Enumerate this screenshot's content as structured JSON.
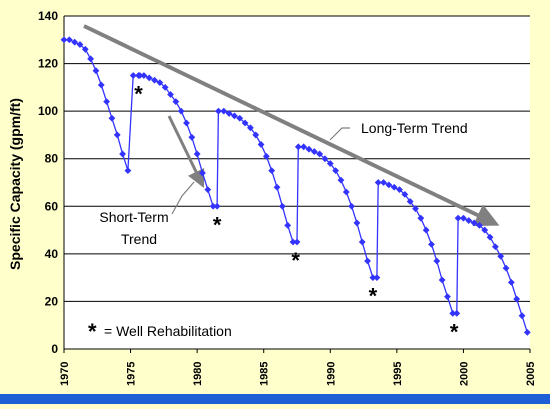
{
  "chart_data": {
    "type": "line",
    "title": "",
    "xlabel": "",
    "ylabel": "Specific Capacity (gpm/ft)",
    "xlim": [
      1970,
      2005
    ],
    "ylim": [
      0,
      140
    ],
    "x_ticks": [
      "1970",
      "1975",
      "1980",
      "1985",
      "1990",
      "1995",
      "2000",
      "2005"
    ],
    "y_ticks": [
      "0",
      "20",
      "40",
      "60",
      "80",
      "100",
      "120",
      "140"
    ],
    "grid": true,
    "series": [
      {
        "color": "#3333ff",
        "marker": "diamond",
        "x": [
          1970,
          1970.4,
          1970.8,
          1971.2,
          1971.6,
          1972,
          1972.4,
          1972.8,
          1973.2,
          1973.6,
          1974,
          1974.4,
          1974.8,
          1975.2,
          1975.6,
          1975.7,
          1976,
          1976.4,
          1976.8,
          1977.2,
          1977.6,
          1978,
          1978.4,
          1978.8,
          1979.2,
          1979.6,
          1980,
          1980.4,
          1980.8,
          1981.2,
          1981.5,
          1981.6,
          1982,
          1982.4,
          1982.8,
          1983.2,
          1983.6,
          1984,
          1984.4,
          1984.8,
          1985.2,
          1985.6,
          1986,
          1986.4,
          1986.8,
          1987.2,
          1987.5,
          1987.6,
          1988,
          1988.4,
          1988.8,
          1989.2,
          1989.6,
          1990,
          1990.4,
          1990.8,
          1991.2,
          1991.6,
          1992,
          1992.4,
          1992.8,
          1993.2,
          1993.5,
          1993.6,
          1994,
          1994.4,
          1994.8,
          1995.2,
          1995.6,
          1996,
          1996.4,
          1996.8,
          1997.2,
          1997.6,
          1998,
          1998.4,
          1998.8,
          1999.2,
          1999.5,
          1999.6,
          2000,
          2000.4,
          2000.8,
          2001.2,
          2001.6,
          2002,
          2002.4,
          2002.8,
          2003.2,
          2003.6,
          2004,
          2004.4,
          2004.8
        ],
        "y": [
          130,
          130,
          129,
          128,
          126,
          122,
          117,
          111,
          104,
          97,
          90,
          82,
          75,
          115,
          115,
          115,
          115,
          114,
          113,
          112,
          110,
          107,
          104,
          100,
          95,
          89,
          82,
          74,
          67,
          60,
          60,
          100,
          100,
          99,
          98,
          97,
          95,
          93,
          90,
          86,
          81,
          75,
          68,
          60,
          52,
          45,
          45,
          85,
          85,
          84,
          83,
          82,
          80,
          78,
          75,
          71,
          66,
          60,
          53,
          45,
          37,
          30,
          30,
          70,
          70,
          69,
          68,
          67,
          65,
          62,
          59,
          55,
          50,
          44,
          37,
          29,
          22,
          15,
          15,
          55,
          55,
          54,
          53,
          52,
          50,
          47,
          43,
          39,
          34,
          28,
          21,
          14,
          7
        ]
      }
    ],
    "rehab_markers": [
      1975.6,
      1981.5,
      1987.4,
      1993.2,
      1999.3
    ],
    "annotations": {
      "long_term": "Long-Term Trend",
      "short_term_line1": "Short-Term",
      "short_term_line2": "Trend",
      "legend_symbol": "*",
      "legend_text": "= Well Rehabilitation"
    },
    "colors": {
      "background": "#ffffcc",
      "plot_area": "#ffffff",
      "series": "#3333ff",
      "arrow": "#808080",
      "bottom_bar": "#1f5fd6"
    }
  }
}
